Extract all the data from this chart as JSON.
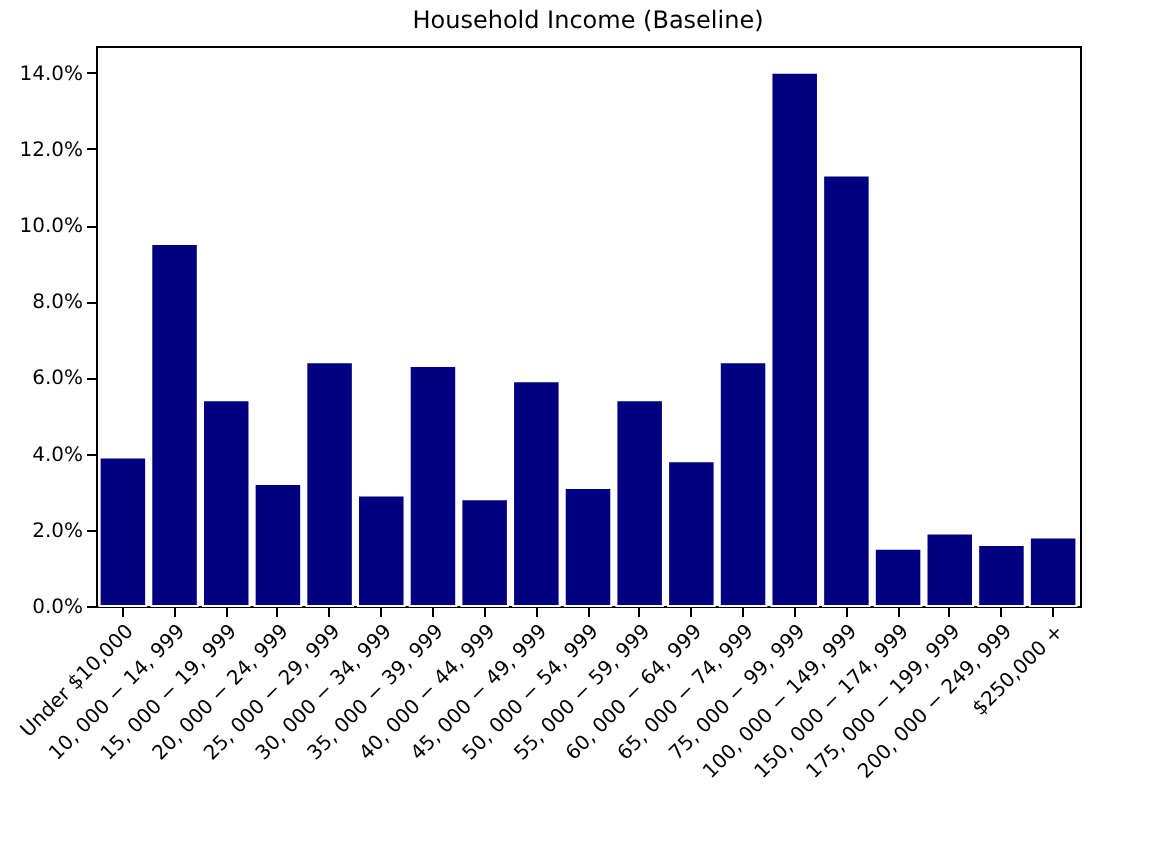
{
  "chart_data": {
    "type": "bar",
    "title": "Household Income (Baseline)",
    "categories": [
      "Under $10,000",
      "10, 000 − 14, 999",
      "15, 000 − 19, 999",
      "20, 000 − 24, 999",
      "25, 000 − 29, 999",
      "30, 000 − 34, 999",
      "35, 000 − 39, 999",
      "40, 000 − 44, 999",
      "45, 000 − 49, 999",
      "50, 000 − 54, 999",
      "55, 000 − 59, 999",
      "60, 000 − 64, 999",
      "65, 000 − 74, 999",
      "75, 000 − 99, 999",
      "100, 000 − 149, 999",
      "150, 000 − 174, 999",
      "175, 000 − 199, 999",
      "200, 000 − 249, 999",
      "$250,000 +"
    ],
    "values": [
      3.9,
      9.5,
      5.4,
      3.2,
      6.4,
      2.9,
      6.3,
      2.8,
      5.9,
      3.1,
      5.4,
      3.8,
      6.4,
      14.0,
      11.3,
      1.5,
      1.9,
      1.6,
      1.8
    ],
    "color": "#000080",
    "ylim": [
      0,
      14.7
    ],
    "yticks": [
      {
        "value": 0,
        "label": "0.0%"
      },
      {
        "value": 2,
        "label": "2.0%"
      },
      {
        "value": 4,
        "label": "4.0%"
      },
      {
        "value": 6,
        "label": "6.0%"
      },
      {
        "value": 8,
        "label": "8.0%"
      },
      {
        "value": 10,
        "label": "10.0%"
      },
      {
        "value": 12,
        "label": "12.0%"
      },
      {
        "value": 14,
        "label": "14.0%"
      }
    ],
    "grid": false
  }
}
